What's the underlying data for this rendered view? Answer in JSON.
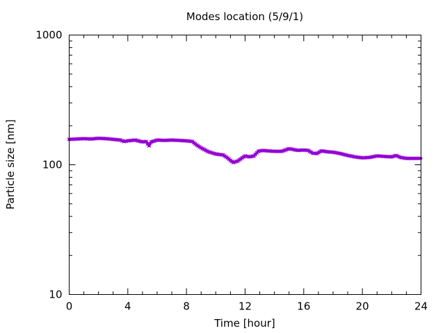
{
  "chart_data": {
    "type": "line",
    "title": "Modes location (5/9/1)",
    "xlabel": "Time [hour]",
    "ylabel": "Particle size [nm]",
    "xlim": [
      0,
      24
    ],
    "ylim": [
      10,
      1000
    ],
    "yscale": "log",
    "grid": false,
    "legend": "none",
    "x_ticks": [
      0,
      4,
      8,
      12,
      16,
      20,
      24
    ],
    "x_tick_labels": [
      "0",
      "4",
      "8",
      "12",
      "16",
      "20",
      "24"
    ],
    "y_ticks": [
      10,
      100,
      1000
    ],
    "y_tick_labels": [
      "10",
      "100",
      "1000"
    ],
    "series_color": "#9400d3",
    "series": [
      {
        "x": [
          0,
          0.5,
          1,
          1.5,
          2,
          2.5,
          3,
          3.5,
          3.75,
          4,
          4.5,
          4.8,
          5,
          5.25,
          5.45,
          5.6,
          6,
          6.5,
          7,
          7.5,
          8,
          8.4,
          8.7,
          9,
          9.5,
          10,
          10.5,
          10.8,
          11,
          11.2,
          11.5,
          11.8,
          12,
          12.3,
          12.6,
          12.9,
          13.2,
          13.5,
          14,
          14.5,
          15,
          15.3,
          15.6,
          16,
          16.3,
          16.6,
          16.9,
          17.2,
          17.6,
          18,
          18.5,
          19,
          19.5,
          20,
          20.5,
          21,
          21.5,
          22,
          22.3,
          22.6,
          23,
          23.5,
          24
        ],
        "y": [
          157,
          158,
          159,
          158,
          160,
          159,
          157,
          155,
          151,
          153,
          155,
          152,
          150,
          151,
          140,
          150,
          155,
          154,
          155,
          154,
          153,
          151,
          142,
          135,
          126,
          121,
          119,
          113,
          108,
          104,
          107,
          113,
          117,
          115,
          117,
          127,
          129,
          128,
          127,
          127,
          133,
          131,
          129,
          130,
          129,
          123,
          122,
          128,
          126,
          125,
          122,
          118,
          115,
          113,
          114,
          117,
          116,
          115,
          118,
          114,
          112,
          112,
          112
        ]
      }
    ]
  }
}
